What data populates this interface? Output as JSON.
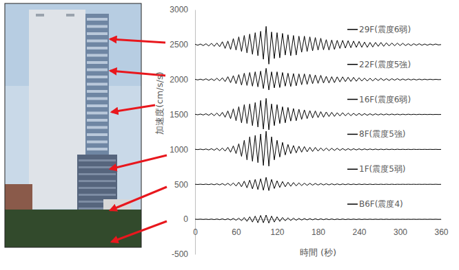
{
  "chart_data": {
    "type": "line",
    "x_label": "時間 (秒)",
    "y_label": "加速度(cm/s/s)",
    "xlim": [
      0,
      360
    ],
    "ylim": [
      -500,
      3000
    ],
    "xticks": [
      0,
      60,
      120,
      180,
      240,
      300,
      360
    ],
    "yticks": [
      -500,
      0,
      500,
      1000,
      1500,
      2000,
      2500,
      3000
    ],
    "grid": false,
    "x": [
      0,
      4,
      8,
      12,
      16,
      20,
      24,
      28,
      32,
      36,
      40,
      44,
      48,
      52,
      56,
      60,
      64,
      68,
      72,
      76,
      80,
      84,
      88,
      92,
      96,
      100,
      104,
      108,
      112,
      116,
      120,
      124,
      128,
      132,
      136,
      140,
      144,
      148,
      152,
      156,
      160,
      164,
      168,
      172,
      176,
      180,
      184,
      188,
      192,
      196,
      200,
      204,
      208,
      212,
      216,
      220,
      224,
      228,
      232,
      236,
      240,
      244,
      248,
      252,
      256,
      260,
      264,
      268,
      272,
      276,
      280,
      284,
      288,
      292,
      296,
      300,
      304,
      308,
      312,
      316,
      320,
      324,
      328,
      332,
      336,
      340,
      344,
      348,
      352,
      356,
      360
    ],
    "series": [
      {
        "name": "29F(震度6弱)",
        "color": "#000000",
        "line_style": "solid",
        "values": [
          2505,
          2490,
          2508,
          2485,
          2512,
          2480,
          2518,
          2475,
          2522,
          2470,
          2540,
          2445,
          2550,
          2430,
          2585,
          2420,
          2610,
          2400,
          2630,
          2380,
          2650,
          2360,
          2670,
          2340,
          2690,
          2290,
          2760,
          2220,
          2680,
          2300,
          2670,
          2310,
          2660,
          2350,
          2640,
          2340,
          2630,
          2350,
          2620,
          2390,
          2620,
          2400,
          2610,
          2410,
          2600,
          2420,
          2590,
          2425,
          2570,
          2420,
          2565,
          2430,
          2560,
          2445,
          2560,
          2450,
          2555,
          2455,
          2550,
          2460,
          2545,
          2460,
          2535,
          2460,
          2530,
          2465,
          2530,
          2475,
          2530,
          2475,
          2525,
          2480,
          2522,
          2482,
          2520,
          2485,
          2518,
          2485,
          2512,
          2485,
          2512,
          2490,
          2512,
          2490,
          2508,
          2490,
          2508,
          2494,
          2508,
          2495,
          2500
        ]
      },
      {
        "name": "22F(震度5強)",
        "color": "#000000",
        "line_style": "solid",
        "values": [
          2003,
          1994,
          2005,
          1992,
          2010,
          1988,
          2010,
          1985,
          2018,
          1980,
          2025,
          1970,
          2040,
          1955,
          2055,
          1940,
          2070,
          1920,
          2090,
          1915,
          2100,
          1905,
          2110,
          1895,
          2120,
          1870,
          2160,
          1850,
          2110,
          1880,
          2110,
          1885,
          2100,
          1905,
          2090,
          1900,
          2085,
          1910,
          2080,
          1925,
          2080,
          1930,
          2075,
          1940,
          2065,
          1945,
          2060,
          1950,
          2045,
          1950,
          2040,
          1955,
          2038,
          1965,
          2038,
          1970,
          2032,
          1972,
          2030,
          1975,
          2025,
          1978,
          2020,
          1978,
          2018,
          1980,
          2016,
          1985,
          2016,
          1986,
          2012,
          1986,
          2012,
          1990,
          2012,
          1990,
          2008,
          1991,
          2008,
          1993,
          2006,
          1993,
          2006,
          1995,
          2005,
          1996,
          2004,
          1997,
          2003,
          1998,
          2000
        ]
      },
      {
        "name": "16F(震度6弱)",
        "color": "#000000",
        "line_style": "solid",
        "values": [
          1503,
          1495,
          1506,
          1492,
          1510,
          1488,
          1515,
          1482,
          1520,
          1475,
          1530,
          1460,
          1550,
          1440,
          1580,
          1410,
          1610,
          1380,
          1640,
          1370,
          1650,
          1340,
          1670,
          1320,
          1700,
          1290,
          1730,
          1280,
          1650,
          1340,
          1640,
          1370,
          1610,
          1380,
          1600,
          1405,
          1585,
          1410,
          1575,
          1430,
          1565,
          1440,
          1555,
          1450,
          1550,
          1455,
          1540,
          1460,
          1535,
          1470,
          1530,
          1472,
          1525,
          1478,
          1525,
          1480,
          1520,
          1482,
          1516,
          1485,
          1515,
          1486,
          1512,
          1488,
          1510,
          1490,
          1509,
          1492,
          1508,
          1493,
          1507,
          1494,
          1506,
          1495,
          1505,
          1495,
          1504,
          1496,
          1504,
          1497,
          1503,
          1497,
          1503,
          1498,
          1502,
          1498,
          1502,
          1498,
          1501,
          1499,
          1500
        ]
      },
      {
        "name": "8F(震度5強)",
        "color": "#000000",
        "line_style": "solid",
        "values": [
          1002,
          997,
          1004,
          995,
          1006,
          992,
          1010,
          988,
          1015,
          982,
          1020,
          975,
          1030,
          960,
          1050,
          940,
          1080,
          900,
          1130,
          850,
          1180,
          830,
          1200,
          810,
          1220,
          770,
          1260,
          760,
          1180,
          850,
          1130,
          890,
          1100,
          920,
          1070,
          940,
          1055,
          950,
          1045,
          960,
          1040,
          965,
          1030,
          970,
          1028,
          975,
          1022,
          980,
          1020,
          982,
          1016,
          985,
          1015,
          986,
          1012,
          988,
          1010,
          990,
          1009,
          992,
          1008,
          993,
          1007,
          994,
          1006,
          995,
          1005,
          995,
          1004,
          996,
          1004,
          997,
          1003,
          997,
          1003,
          998,
          1002,
          998,
          1002,
          998,
          1002,
          999,
          1001,
          999,
          1001,
          999,
          1001,
          999,
          1001,
          999,
          1000
        ]
      },
      {
        "name": "1F(震度5弱)",
        "color": "#000000",
        "line_style": "solid",
        "values": [
          501,
          498,
          502,
          497,
          503,
          496,
          505,
          494,
          507,
          492,
          510,
          488,
          514,
          484,
          520,
          475,
          530,
          465,
          545,
          450,
          560,
          435,
          570,
          425,
          580,
          415,
          600,
          410,
          570,
          440,
          550,
          455,
          540,
          465,
          530,
          472,
          525,
          478,
          520,
          482,
          516,
          485,
          514,
          488,
          512,
          490,
          510,
          491,
          508,
          492,
          507,
          493,
          506,
          494,
          505,
          495,
          505,
          496,
          504,
          496,
          504,
          497,
          503,
          497,
          503,
          497,
          502,
          498,
          502,
          498,
          502,
          498,
          502,
          498,
          501,
          499,
          501,
          499,
          501,
          499,
          501,
          499,
          501,
          499,
          501,
          499,
          501,
          499,
          501,
          499,
          500
        ]
      },
      {
        "name": "B6F(震度4)",
        "color": "#000000",
        "line_style": "solid",
        "values": [
          1,
          -1,
          2,
          -2,
          2,
          -3,
          3,
          -4,
          4,
          -5,
          6,
          -7,
          8,
          -10,
          12,
          -14,
          16,
          -20,
          25,
          -30,
          35,
          -40,
          45,
          -50,
          55,
          -50,
          60,
          -55,
          45,
          -40,
          35,
          -30,
          25,
          -22,
          20,
          -18,
          16,
          -14,
          12,
          -11,
          10,
          -9,
          9,
          -8,
          8,
          -7,
          7,
          -6,
          6,
          -5,
          5,
          -5,
          4,
          -4,
          4,
          -4,
          3,
          -3,
          3,
          -3,
          3,
          -3,
          2,
          -2,
          2,
          -2,
          2,
          -2,
          2,
          -2,
          2,
          -2,
          1,
          -1,
          1,
          -1,
          1,
          -1,
          1,
          -1,
          1,
          -1,
          1,
          -1,
          1,
          -1,
          1,
          -1,
          1,
          -1,
          0
        ]
      }
    ]
  }
}
